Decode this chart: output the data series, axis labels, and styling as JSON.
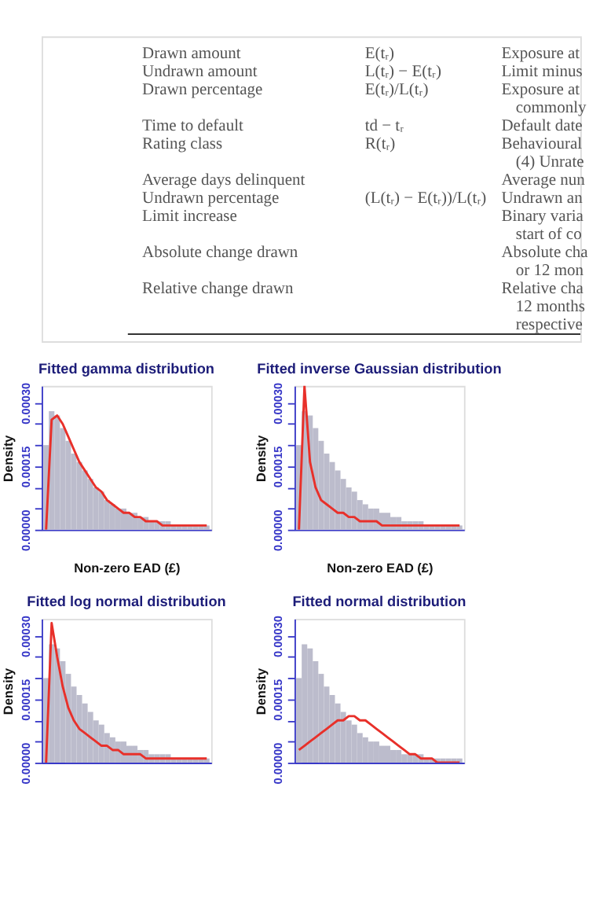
{
  "chart_data": [
    {
      "type": "bar",
      "title": "Fitted gamma distribution",
      "xlabel": "Non-zero EAD (£)",
      "ylabel": "Density",
      "categories": [
        null,
        null,
        null,
        null,
        null,
        null,
        null,
        null,
        null,
        null,
        null,
        null,
        null,
        null,
        null,
        null,
        null,
        null,
        null,
        null,
        null,
        null,
        null,
        null,
        null,
        null,
        null,
        null,
        null,
        null
      ],
      "ylim": [
        0,
        0.00034
      ],
      "yticks": [
        {
          "value": 0,
          "label": "0.00000"
        },
        {
          "value": 5e-05,
          "label": null
        },
        {
          "value": 0.0001,
          "label": null
        },
        {
          "value": 0.00015,
          "label": "0.00015"
        },
        {
          "value": 0.0002,
          "label": null
        },
        {
          "value": 0.00025,
          "label": null
        },
        {
          "value": 0.0003,
          "label": "0.00030"
        }
      ],
      "tick_labels": "y",
      "series": [
        {
          "type": "bar",
          "color": "#bcbccc",
          "values": [
            0.0002,
            0.00028,
            0.00027,
            0.00024,
            0.00021,
            0.00018,
            0.00016,
            0.00014,
            0.00012,
            0.0001,
            9e-05,
            7e-05,
            6e-05,
            5e-05,
            5e-05,
            4e-05,
            4e-05,
            3e-05,
            3e-05,
            2e-05,
            2e-05,
            2e-05,
            2e-05,
            1e-05,
            1e-05,
            1e-05,
            1e-05,
            1e-05,
            1e-05,
            1e-05
          ]
        },
        {
          "type": "line",
          "color": "#e8302a",
          "values": [
            0,
            0.00026,
            0.00027,
            0.00025,
            0.00022,
            0.00019,
            0.00016,
            0.00014,
            0.00012,
            0.0001,
            9e-05,
            7e-05,
            6e-05,
            5e-05,
            4e-05,
            4e-05,
            3e-05,
            3e-05,
            2e-05,
            2e-05,
            2e-05,
            1e-05,
            1e-05,
            1e-05,
            1e-05,
            1e-05,
            1e-05,
            1e-05,
            1e-05,
            1e-05
          ]
        }
      ]
    },
    {
      "type": "bar",
      "title": "Fitted inverse Gaussian distribution",
      "xlabel": "Non-zero EAD (£)",
      "ylabel": "Density",
      "categories": [
        null,
        null,
        null,
        null,
        null,
        null,
        null,
        null,
        null,
        null,
        null,
        null,
        null,
        null,
        null,
        null,
        null,
        null,
        null,
        null,
        null,
        null,
        null,
        null,
        null,
        null,
        null,
        null,
        null,
        null
      ],
      "ylim": [
        0,
        0.00034
      ],
      "yticks": [
        {
          "value": 0,
          "label": "0.00000"
        },
        {
          "value": 5e-05,
          "label": null
        },
        {
          "value": 0.0001,
          "label": null
        },
        {
          "value": 0.00015,
          "label": "0.00015"
        },
        {
          "value": 0.0002,
          "label": null
        },
        {
          "value": 0.00025,
          "label": null
        },
        {
          "value": 0.0003,
          "label": "0.00030"
        }
      ],
      "tick_labels": "y",
      "series": [
        {
          "type": "bar",
          "color": "#bcbccc",
          "values": [
            0.0002,
            0.00028,
            0.00027,
            0.00024,
            0.00021,
            0.00018,
            0.00016,
            0.00014,
            0.00012,
            0.0001,
            9e-05,
            7e-05,
            6e-05,
            5e-05,
            5e-05,
            4e-05,
            4e-05,
            3e-05,
            3e-05,
            2e-05,
            2e-05,
            2e-05,
            2e-05,
            1e-05,
            1e-05,
            1e-05,
            1e-05,
            1e-05,
            1e-05,
            1e-05
          ]
        },
        {
          "type": "line",
          "color": "#e8302a",
          "values": [
            0,
            0.00034,
            0.00016,
            0.0001,
            7e-05,
            6e-05,
            5e-05,
            4e-05,
            4e-05,
            3e-05,
            3e-05,
            2e-05,
            2e-05,
            2e-05,
            2e-05,
            1e-05,
            1e-05,
            1e-05,
            1e-05,
            1e-05,
            1e-05,
            1e-05,
            1e-05,
            1e-05,
            1e-05,
            1e-05,
            1e-05,
            1e-05,
            1e-05,
            1e-05
          ]
        }
      ]
    },
    {
      "type": "bar",
      "title": "Fitted log normal distribution",
      "ylabel": "Density",
      "categories": [
        null,
        null,
        null,
        null,
        null,
        null,
        null,
        null,
        null,
        null,
        null,
        null,
        null,
        null,
        null,
        null,
        null,
        null,
        null,
        null,
        null,
        null,
        null,
        null,
        null,
        null,
        null,
        null,
        null,
        null
      ],
      "ylim": [
        0,
        0.00034
      ],
      "yticks": [
        {
          "value": 0,
          "label": "0.00000"
        },
        {
          "value": 5e-05,
          "label": null
        },
        {
          "value": 0.0001,
          "label": null
        },
        {
          "value": 0.00015,
          "label": "0.00015"
        },
        {
          "value": 0.0002,
          "label": null
        },
        {
          "value": 0.00025,
          "label": null
        },
        {
          "value": 0.0003,
          "label": "0.00030"
        }
      ],
      "tick_labels": "y",
      "series": [
        {
          "type": "bar",
          "color": "#bcbccc",
          "values": [
            0.0002,
            0.00028,
            0.00027,
            0.00024,
            0.00021,
            0.00018,
            0.00016,
            0.00014,
            0.00012,
            0.0001,
            9e-05,
            7e-05,
            6e-05,
            5e-05,
            5e-05,
            4e-05,
            4e-05,
            3e-05,
            3e-05,
            2e-05,
            2e-05,
            2e-05,
            2e-05,
            1e-05,
            1e-05,
            1e-05,
            1e-05,
            1e-05,
            1e-05,
            1e-05
          ]
        },
        {
          "type": "line",
          "color": "#e8302a",
          "values": [
            0,
            0.00033,
            0.00025,
            0.00018,
            0.00013,
            0.0001,
            8e-05,
            7e-05,
            6e-05,
            5e-05,
            4e-05,
            4e-05,
            3e-05,
            3e-05,
            2e-05,
            2e-05,
            2e-05,
            2e-05,
            1e-05,
            1e-05,
            1e-05,
            1e-05,
            1e-05,
            1e-05,
            1e-05,
            1e-05,
            1e-05,
            1e-05,
            1e-05,
            1e-05
          ]
        }
      ]
    },
    {
      "type": "bar",
      "title": "Fitted normal distribution",
      "ylabel": "Density",
      "categories": [
        null,
        null,
        null,
        null,
        null,
        null,
        null,
        null,
        null,
        null,
        null,
        null,
        null,
        null,
        null,
        null,
        null,
        null,
        null,
        null,
        null,
        null,
        null,
        null,
        null,
        null,
        null,
        null,
        null,
        null
      ],
      "ylim": [
        0,
        0.00034
      ],
      "yticks": [
        {
          "value": 0,
          "label": "0.00000"
        },
        {
          "value": 5e-05,
          "label": null
        },
        {
          "value": 0.0001,
          "label": null
        },
        {
          "value": 0.00015,
          "label": "0.00015"
        },
        {
          "value": 0.0002,
          "label": null
        },
        {
          "value": 0.00025,
          "label": null
        },
        {
          "value": 0.0003,
          "label": "0.00030"
        }
      ],
      "tick_labels": "y",
      "series": [
        {
          "type": "bar",
          "color": "#bcbccc",
          "values": [
            0.0002,
            0.00028,
            0.00027,
            0.00024,
            0.00021,
            0.00018,
            0.00016,
            0.00014,
            0.00012,
            0.0001,
            9e-05,
            7e-05,
            6e-05,
            5e-05,
            5e-05,
            4e-05,
            4e-05,
            3e-05,
            3e-05,
            2e-05,
            2e-05,
            2e-05,
            2e-05,
            1e-05,
            1e-05,
            1e-05,
            1e-05,
            1e-05,
            1e-05,
            1e-05
          ]
        },
        {
          "type": "line",
          "color": "#e8302a",
          "values": [
            3e-05,
            4e-05,
            5e-05,
            6e-05,
            7e-05,
            8e-05,
            9e-05,
            0.0001,
            0.0001,
            0.00011,
            0.00011,
            0.0001,
            0.0001,
            9e-05,
            8e-05,
            7e-05,
            6e-05,
            5e-05,
            4e-05,
            3e-05,
            2e-05,
            2e-05,
            1e-05,
            1e-05,
            1e-05,
            0,
            0,
            0,
            0,
            0
          ]
        }
      ]
    },
    {
      "type": "other",
      "annotations": [
        "Drawn amount",
        "E(tᵣ)",
        "Exposure at",
        "Undrawn amount",
        "L(tᵣ) − E(tᵣ)",
        "Limit minus",
        "Drawn percentage",
        "E(tᵣ)/L(tᵣ)",
        "Exposure at",
        "commonly",
        "Time to default",
        "td − tᵣ",
        "Default date",
        "Rating class",
        "R(tᵣ)",
        "Behavioural",
        "(4) Unrate",
        "Average days delinquent",
        "Average nun",
        "Undrawn percentage",
        "(L(tᵣ) − E(tᵣ))/L(tᵣ)",
        "Undrawn an",
        "Limit increase",
        "Binary varia",
        "start of co",
        "Absolute change drawn",
        "Absolute cha",
        "or 12 mon",
        "Relative change drawn",
        "Relative cha",
        "12 months",
        "respective"
      ]
    }
  ]
}
